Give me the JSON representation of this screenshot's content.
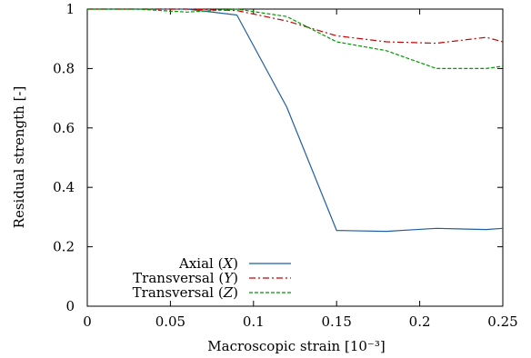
{
  "chart_data": {
    "type": "line",
    "title": "",
    "xlabel": "Macroscopic strain [10⁻³]",
    "ylabel": "Residual strength [-]",
    "xlim": [
      0,
      0.25
    ],
    "ylim": [
      0,
      1
    ],
    "x_ticks": [
      0,
      0.05,
      0.1,
      0.15,
      0.2,
      0.25
    ],
    "x_tick_labels": [
      "0",
      "0.05",
      "0.1",
      "0.15",
      "0.2",
      "0.25"
    ],
    "y_ticks": [
      0,
      0.2,
      0.4,
      0.6,
      0.8,
      1
    ],
    "y_tick_labels": [
      "0",
      "0.2",
      "0.4",
      "0.6",
      "0.8",
      "1"
    ],
    "grid": false,
    "legend_position": "bottom-left",
    "series": [
      {
        "name": "Axial (X)",
        "label_text": "Axial",
        "label_var": "X",
        "color": "#1f5fa0",
        "dash": "solid",
        "x": [
          0,
          0.03,
          0.06,
          0.09,
          0.12,
          0.15,
          0.18,
          0.21,
          0.24,
          0.25
        ],
        "y": [
          1.0,
          1.0,
          1.0,
          0.98,
          0.67,
          0.255,
          0.252,
          0.262,
          0.258,
          0.262
        ]
      },
      {
        "name": "Transversal (Y)",
        "label_text": "Transversal",
        "label_var": "Y",
        "color": "#cc0000",
        "dash": "dashdot",
        "x": [
          0,
          0.03,
          0.06,
          0.09,
          0.12,
          0.15,
          0.18,
          0.21,
          0.24,
          0.25
        ],
        "y": [
          1.0,
          1.0,
          1.0,
          0.995,
          0.96,
          0.91,
          0.89,
          0.885,
          0.905,
          0.89
        ]
      },
      {
        "name": "Transversal (Z)",
        "label_text": "Transversal",
        "label_var": "Z",
        "color": "#009900",
        "dash": "dashed",
        "x": [
          0,
          0.03,
          0.06,
          0.09,
          0.12,
          0.15,
          0.18,
          0.21,
          0.24,
          0.25
        ],
        "y": [
          1.0,
          1.0,
          0.99,
          1.0,
          0.975,
          0.89,
          0.86,
          0.8,
          0.8,
          0.808
        ]
      }
    ]
  }
}
